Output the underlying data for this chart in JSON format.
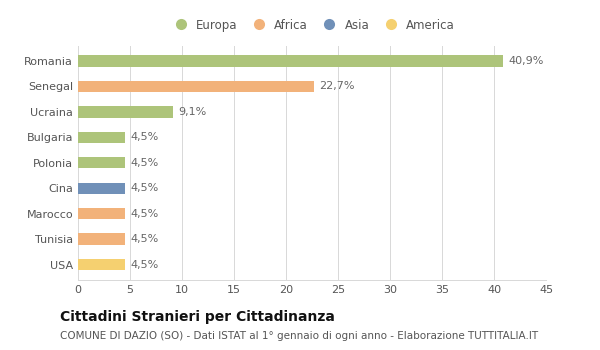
{
  "countries": [
    "Romania",
    "Senegal",
    "Ucraina",
    "Bulgaria",
    "Polonia",
    "Cina",
    "Marocco",
    "Tunisia",
    "USA"
  ],
  "values": [
    40.9,
    22.7,
    9.1,
    4.5,
    4.5,
    4.5,
    4.5,
    4.5,
    4.5
  ],
  "labels": [
    "40,9%",
    "22,7%",
    "9,1%",
    "4,5%",
    "4,5%",
    "4,5%",
    "4,5%",
    "4,5%",
    "4,5%"
  ],
  "bar_colors": [
    "#adc47a",
    "#f2b27a",
    "#adc47a",
    "#adc47a",
    "#adc47a",
    "#7090b8",
    "#f2b27a",
    "#f2b27a",
    "#f5d070"
  ],
  "legend_labels": [
    "Europa",
    "Africa",
    "Asia",
    "America"
  ],
  "legend_colors": [
    "#adc47a",
    "#f2b27a",
    "#7090b8",
    "#f5d070"
  ],
  "title": "Cittadini Stranieri per Cittadinanza",
  "subtitle": "COMUNE DI DAZIO (SO) - Dati ISTAT al 1° gennaio di ogni anno - Elaborazione TUTTITALIA.IT",
  "xlim": [
    0,
    45
  ],
  "xticks": [
    0,
    5,
    10,
    15,
    20,
    25,
    30,
    35,
    40,
    45
  ],
  "background_color": "#ffffff",
  "grid_color": "#d8d8d8",
  "bar_height": 0.45,
  "title_fontsize": 10,
  "subtitle_fontsize": 7.5,
  "label_fontsize": 8,
  "tick_fontsize": 8,
  "legend_fontsize": 8.5
}
